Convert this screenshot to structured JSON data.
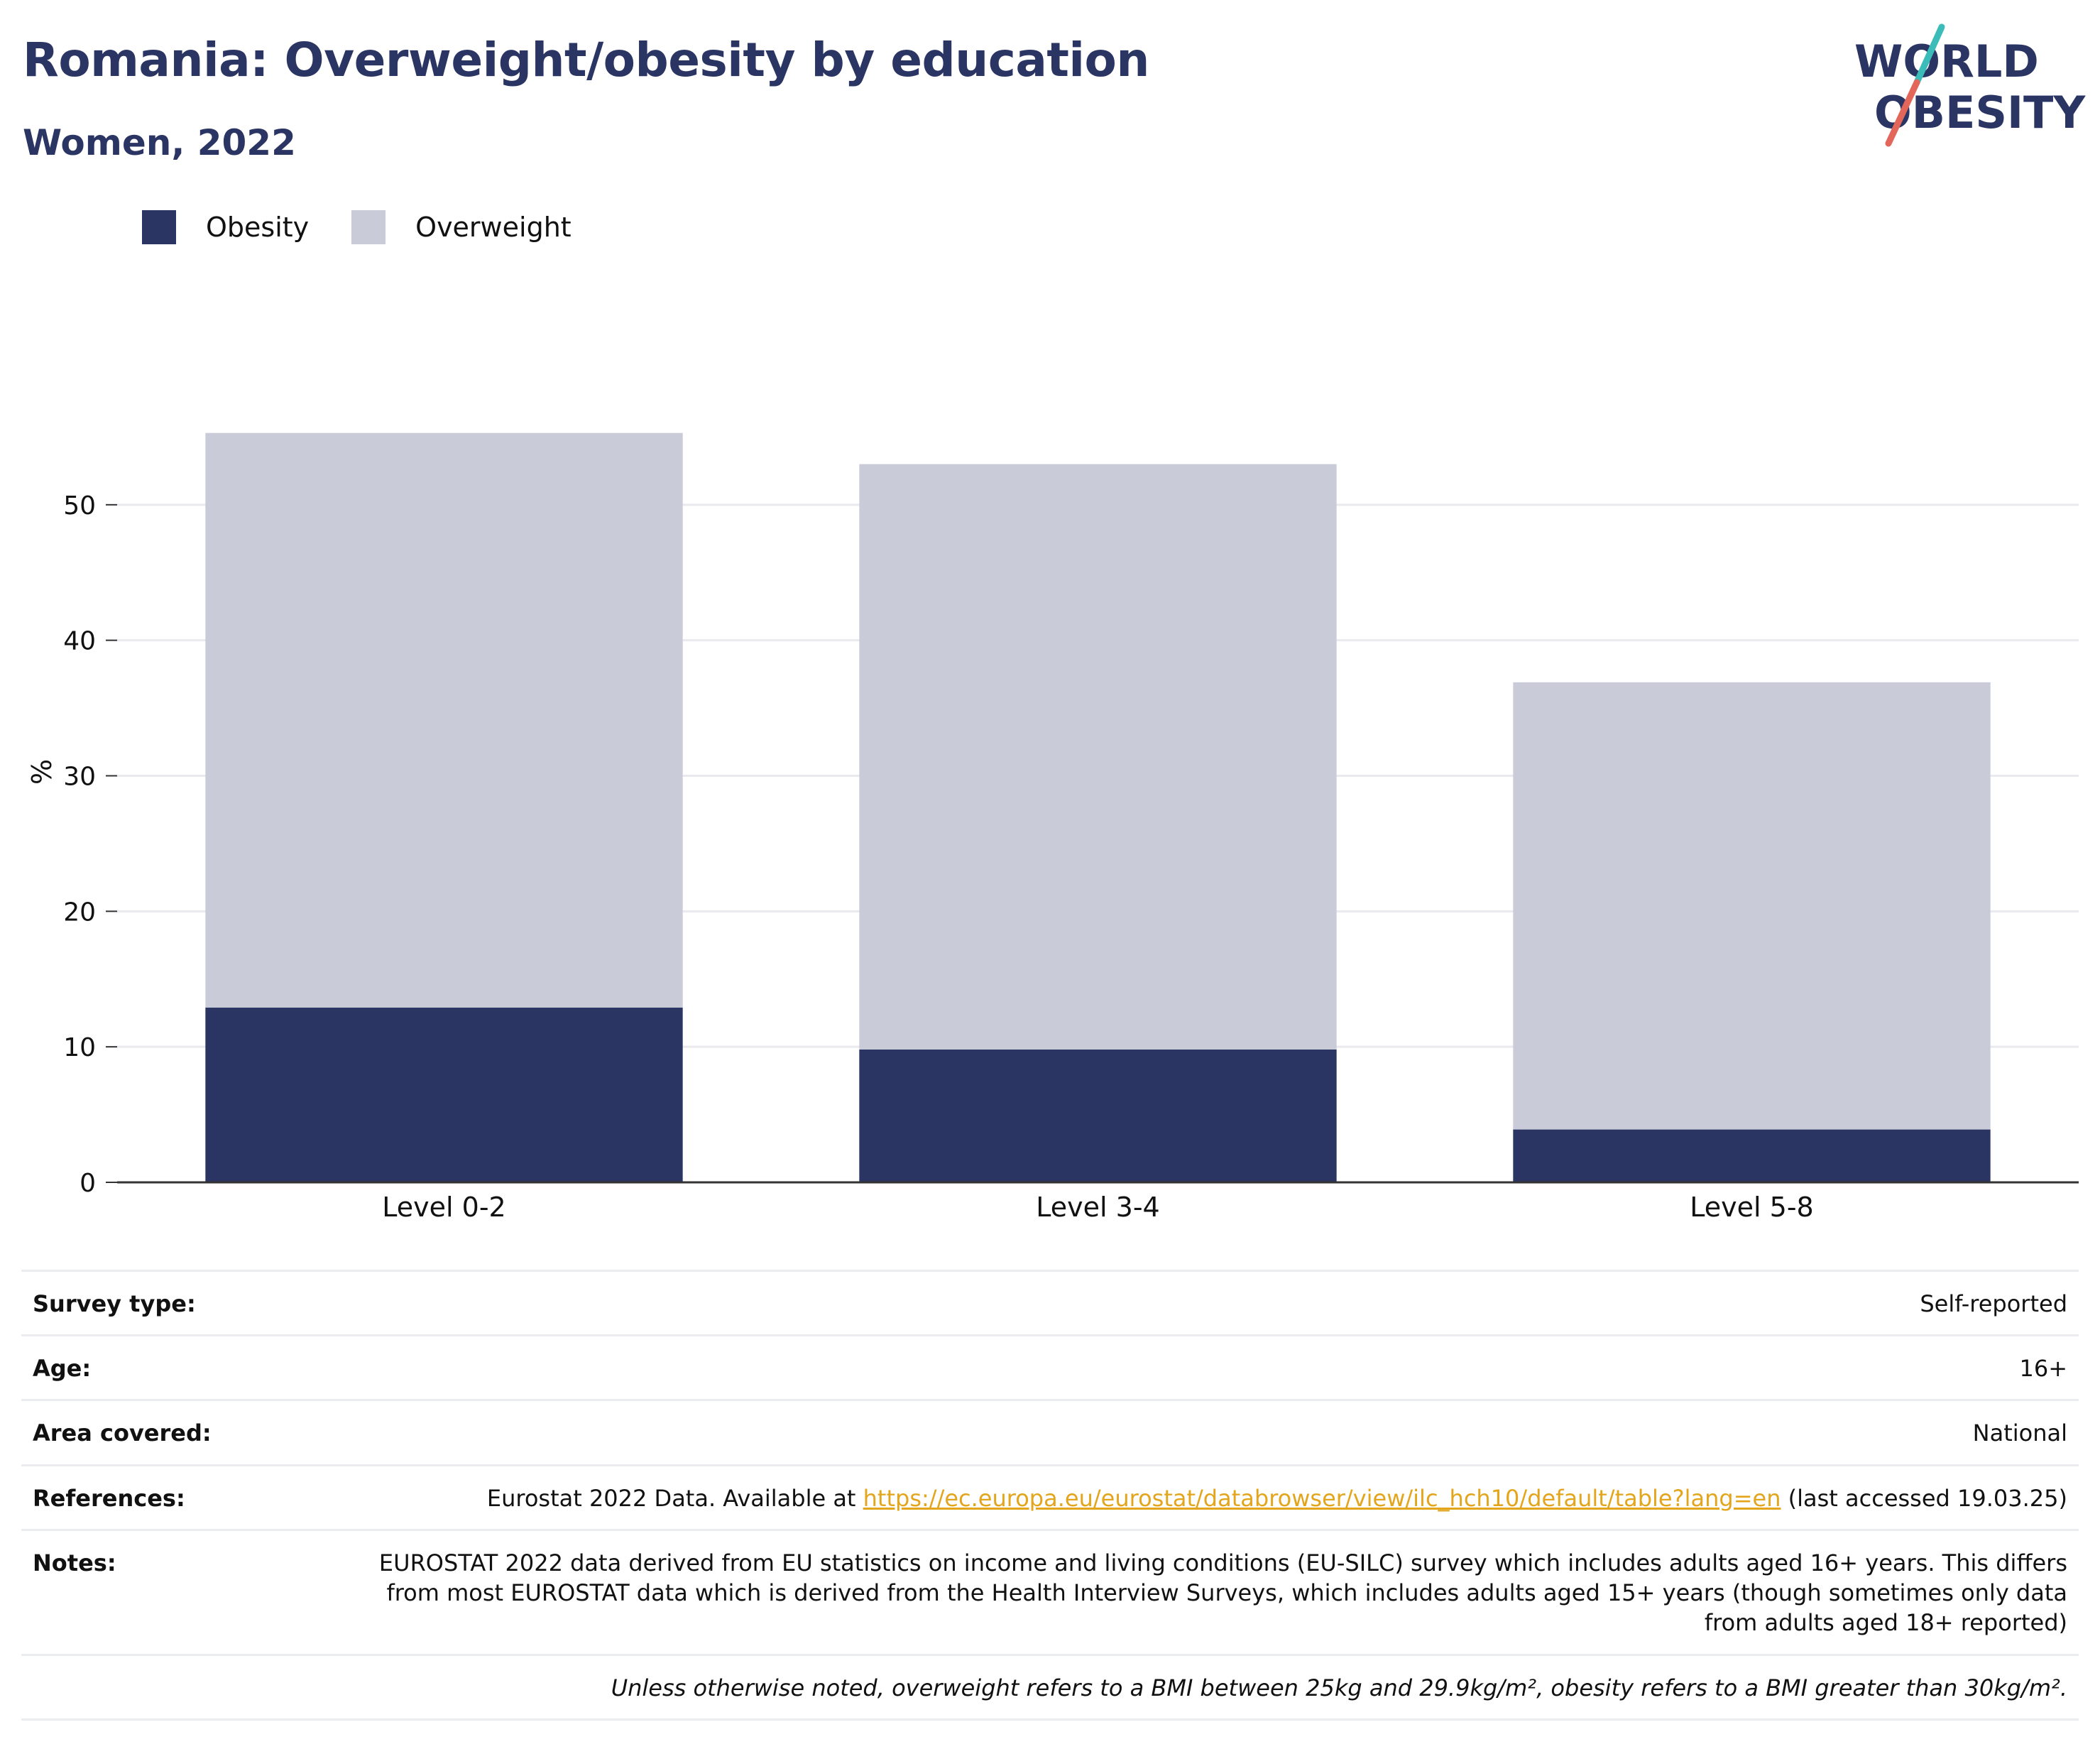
{
  "header": {
    "title": "Romania: Overweight/obesity by education",
    "subtitle": "Women, 2022"
  },
  "logo": {
    "line1": "WORLD",
    "line2": "OBESITY",
    "colors": {
      "text": "#2a3563",
      "slash_top": "#3bbcb8",
      "slash_bottom": "#e2665a"
    }
  },
  "legend": [
    {
      "label": "Obesity",
      "color": "#2a3563"
    },
    {
      "label": "Overweight",
      "color": "#c9ccd8"
    }
  ],
  "chart_data": {
    "type": "bar",
    "stacked": true,
    "categories": [
      "Level 0-2",
      "Level 3-4",
      "Level 5-8"
    ],
    "series": [
      {
        "name": "Obesity",
        "color": "#2a3563",
        "values": [
          12.9,
          9.8,
          3.9
        ]
      },
      {
        "name": "Overweight",
        "color": "#c9ccd8",
        "values": [
          42.4,
          43.2,
          33.0
        ]
      }
    ],
    "ylabel": "%",
    "xlabel": "",
    "ylim": [
      0,
      60
    ],
    "yticks": [
      0,
      10,
      20,
      30,
      40,
      50
    ],
    "grid": true,
    "legend_position": "top-left"
  },
  "meta": [
    {
      "label": "Survey type:",
      "value": "Self-reported"
    },
    {
      "label": "Age:",
      "value": "16+"
    },
    {
      "label": "Area covered:",
      "value": "National"
    }
  ],
  "references": {
    "label": "References:",
    "prefix": "Eurostat 2022 Data. Available at ",
    "link": "https://ec.europa.eu/eurostat/databrowser/view/ilc_hch10/default/table?lang=en",
    "suffix": " (last accessed 19.03.25)"
  },
  "notes": {
    "label": "Notes:",
    "text": "EUROSTAT 2022 data derived from EU statistics on income and living conditions (EU-SILC) survey which includes adults aged 16+ years. This differs from most EUROSTAT data which is derived from the Health Interview Surveys, which includes adults aged 15+ years (though sometimes only data from adults aged 18+ reported)"
  },
  "footnote": "Unless otherwise noted, overweight refers to a BMI between 25kg and 29.9kg/m², obesity refers to a BMI greater than 30kg/m²."
}
